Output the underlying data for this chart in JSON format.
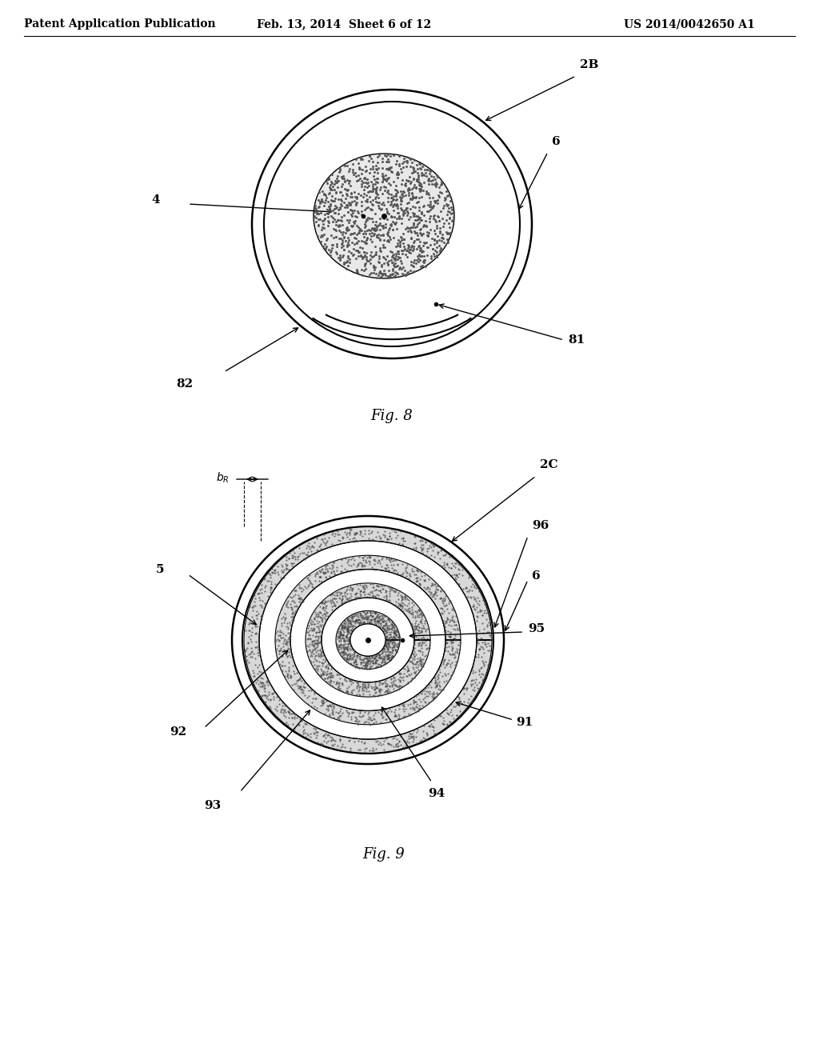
{
  "background": "#ffffff",
  "header_left": "Patent Application Publication",
  "header_mid": "Feb. 13, 2014  Sheet 6 of 12",
  "header_right": "US 2014/0042650 A1",
  "fig8_caption": "Fig. 8",
  "fig9_caption": "Fig. 9",
  "line_color": "#000000"
}
